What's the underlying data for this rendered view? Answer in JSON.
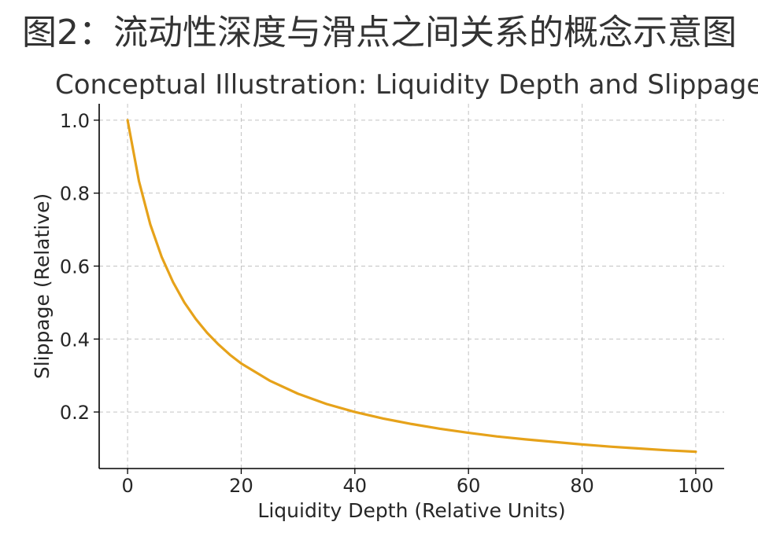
{
  "figure": {
    "title": "图2：流动性深度与滑点之间关系的概念示意图"
  },
  "chart_data": {
    "type": "line",
    "title": "Conceptual Illustration: Liquidity Depth and Slippage",
    "xlabel": "Liquidity Depth (Relative Units)",
    "ylabel": "Slippage (Relative)",
    "xlim": [
      -5,
      105
    ],
    "ylim": [
      0.045,
      1.045
    ],
    "grid": true,
    "x_ticks": [
      0,
      20,
      40,
      60,
      80,
      100
    ],
    "x_tick_labels": [
      "0",
      "20",
      "40",
      "60",
      "80",
      "100"
    ],
    "y_ticks": [
      0.2,
      0.4,
      0.6,
      0.8,
      1.0
    ],
    "y_tick_labels": [
      "0.2",
      "0.4",
      "0.6",
      "0.8",
      "1.0"
    ],
    "series": [
      {
        "color": "#e6a21a",
        "x": [
          0,
          2,
          4,
          6,
          8,
          10,
          12,
          14,
          16,
          18,
          20,
          25,
          30,
          35,
          40,
          45,
          50,
          55,
          60,
          65,
          70,
          75,
          80,
          85,
          90,
          95,
          100
        ],
        "y": [
          1.0,
          0.833,
          0.714,
          0.625,
          0.556,
          0.5,
          0.455,
          0.417,
          0.385,
          0.357,
          0.333,
          0.286,
          0.25,
          0.222,
          0.2,
          0.182,
          0.167,
          0.154,
          0.143,
          0.133,
          0.125,
          0.118,
          0.111,
          0.105,
          0.1,
          0.095,
          0.091
        ]
      }
    ]
  }
}
